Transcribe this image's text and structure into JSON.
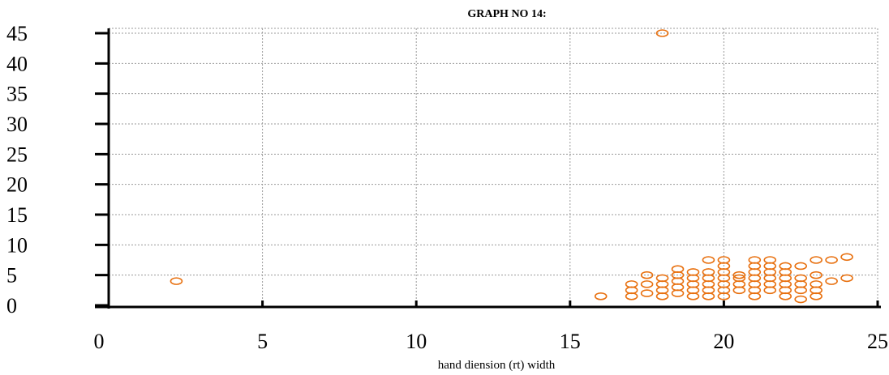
{
  "chart_data": {
    "type": "scatter",
    "title": "GRAPH NO 14:",
    "xlabel": "hand diension (rt) width",
    "ylabel": "",
    "xlim": [
      0,
      25
    ],
    "ylim": [
      0,
      45
    ],
    "x_ticks": [
      "0",
      "5",
      "10",
      "15",
      "20",
      "25"
    ],
    "y_ticks": [
      "0",
      "5",
      "10",
      "15",
      "20",
      "25",
      "30",
      "35",
      "40",
      "45"
    ],
    "grid": true,
    "marker": "open-ellipse",
    "marker_color": "#e8700f",
    "points": [
      [
        18,
        45
      ],
      [
        2.2,
        4
      ],
      [
        16,
        1.5
      ],
      [
        17,
        1.5
      ],
      [
        17,
        2.5
      ],
      [
        17,
        3.5
      ],
      [
        17.5,
        2
      ],
      [
        17.5,
        3.5
      ],
      [
        17.5,
        5
      ],
      [
        18,
        1.5
      ],
      [
        18,
        2.5
      ],
      [
        18,
        3.5
      ],
      [
        18,
        4.5
      ],
      [
        18.5,
        2
      ],
      [
        18.5,
        3
      ],
      [
        18.5,
        4
      ],
      [
        18.5,
        5
      ],
      [
        18.5,
        6
      ],
      [
        19,
        1.5
      ],
      [
        19,
        2.5
      ],
      [
        19,
        3.5
      ],
      [
        19,
        4.5
      ],
      [
        19,
        5.5
      ],
      [
        19.5,
        1.5
      ],
      [
        19.5,
        2.5
      ],
      [
        19.5,
        3.5
      ],
      [
        19.5,
        4.5
      ],
      [
        19.5,
        5.5
      ],
      [
        19.5,
        7.5
      ],
      [
        20,
        1.5
      ],
      [
        20,
        2.5
      ],
      [
        20,
        3.5
      ],
      [
        20,
        4.5
      ],
      [
        20,
        5.5
      ],
      [
        20,
        6.5
      ],
      [
        20,
        7.5
      ],
      [
        20.5,
        2.5
      ],
      [
        20.5,
        3.5
      ],
      [
        20.5,
        4.5
      ],
      [
        20.5,
        5
      ],
      [
        21,
        1.5
      ],
      [
        21,
        2.5
      ],
      [
        21,
        3.5
      ],
      [
        21,
        4.5
      ],
      [
        21,
        5.5
      ],
      [
        21,
        6.5
      ],
      [
        21,
        7.5
      ],
      [
        21.5,
        2.5
      ],
      [
        21.5,
        3.5
      ],
      [
        21.5,
        4.5
      ],
      [
        21.5,
        5.5
      ],
      [
        21.5,
        6.5
      ],
      [
        21.5,
        7.5
      ],
      [
        22,
        1.5
      ],
      [
        22,
        2.5
      ],
      [
        22,
        3.5
      ],
      [
        22,
        4.5
      ],
      [
        22,
        5.5
      ],
      [
        22,
        6.5
      ],
      [
        22.5,
        1
      ],
      [
        22.5,
        2.5
      ],
      [
        22.5,
        3.5
      ],
      [
        22.5,
        4.5
      ],
      [
        22.5,
        6.5
      ],
      [
        23,
        1.5
      ],
      [
        23,
        2.5
      ],
      [
        23,
        3.5
      ],
      [
        23,
        5
      ],
      [
        23,
        7.5
      ],
      [
        23.5,
        4
      ],
      [
        23.5,
        7.5
      ],
      [
        24,
        4.5
      ],
      [
        24,
        8
      ]
    ]
  }
}
